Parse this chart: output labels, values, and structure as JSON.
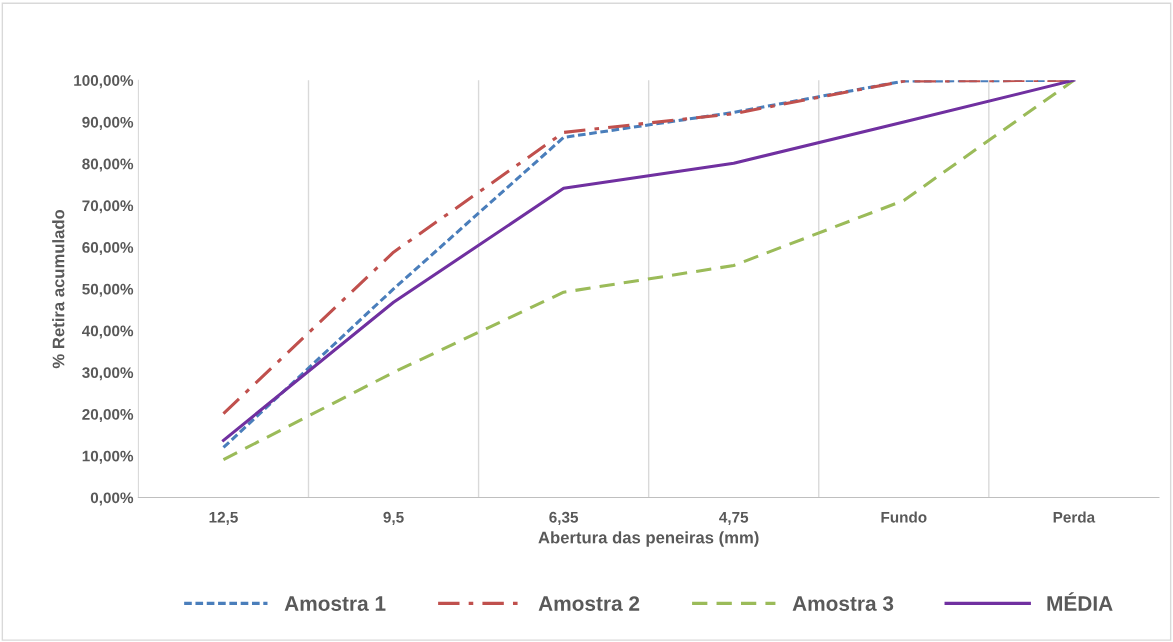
{
  "chart_data": {
    "type": "line",
    "xlabel": "Abertura das peneiras (mm)",
    "ylabel": "% Retira acumulado",
    "categories": [
      "12,5",
      "9,5",
      "6,35",
      "4,75",
      "Fundo",
      "Perda"
    ],
    "series": [
      {
        "name": "Amostra 1",
        "color": "#4a7ebb",
        "line_style": "dotted",
        "values": [
          12,
          50,
          86.3,
          92.3,
          99.8,
          100
        ]
      },
      {
        "name": "Amostra 2",
        "color": "#c0504d",
        "line_style": "dashdot",
        "values": [
          20.1,
          58.8,
          87.5,
          92,
          99.8,
          100
        ]
      },
      {
        "name": "Amostra 3",
        "color": "#9bbb59",
        "line_style": "dashed",
        "values": [
          9.1,
          30,
          49.2,
          55.6,
          71.2,
          100
        ]
      },
      {
        "name": "MÉDIA",
        "color": "#7030a0",
        "line_style": "solid",
        "values": [
          13.7,
          46.8,
          74.1,
          80.1,
          90,
          100
        ]
      }
    ],
    "ylim": [
      0,
      100
    ],
    "yticks": [
      {
        "value": 0,
        "label": "0,00%"
      },
      {
        "value": 10,
        "label": "10,00%"
      },
      {
        "value": 20,
        "label": "20,00%"
      },
      {
        "value": 30,
        "label": "30,00%"
      },
      {
        "value": 40,
        "label": "40,00%"
      },
      {
        "value": 50,
        "label": "50,00%"
      },
      {
        "value": 60,
        "label": "60,00%"
      },
      {
        "value": 70,
        "label": "70,00%"
      },
      {
        "value": 80,
        "label": "80,00%"
      },
      {
        "value": 90,
        "label": "90,00%"
      },
      {
        "value": 100,
        "label": "100,00%"
      }
    ],
    "grid": "x",
    "legend": "bottom",
    "marker": "none"
  }
}
